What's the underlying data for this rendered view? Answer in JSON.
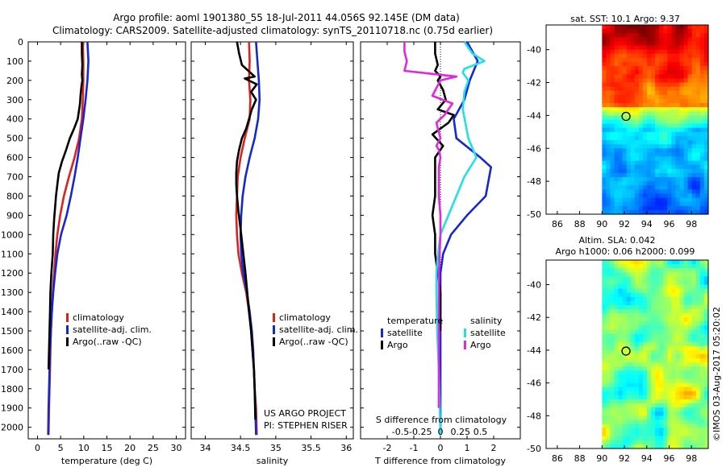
{
  "header": {
    "line1": "Argo profile: aoml 1901380_55 18-Jul-2011 44.056S 92.145E (DM data)",
    "line2": "Climatology: CARS2009. Satellite-adjusted climatology: synTS_20110718.nc (0.75d earlier)"
  },
  "colors": {
    "red": "#e0201a",
    "blue": "#1428d2",
    "black": "#000000",
    "cyan": "#20e0e8",
    "magenta": "#e028e0"
  },
  "chart_data": [
    {
      "id": "temperature",
      "type": "line",
      "xlabel": "temperature (deg C)",
      "xlim": [
        -2,
        32
      ],
      "xticks": [
        0,
        5,
        10,
        15,
        20,
        25,
        30
      ],
      "ylim": [
        0,
        2060
      ],
      "yticks": [
        0,
        100,
        200,
        300,
        400,
        500,
        600,
        700,
        800,
        900,
        1000,
        1100,
        1200,
        1300,
        1400,
        1500,
        1600,
        1700,
        1800,
        1900,
        2000
      ],
      "legend": [
        "climatology",
        "satellite-adj. clim.",
        "Argo(..raw -QC)"
      ],
      "series": [
        {
          "name": "climatology",
          "color": "red",
          "x": [
            9.8,
            9.9,
            9.9,
            9.8,
            9.6,
            9.0,
            8.0,
            6.8,
            5.7,
            4.9,
            4.3,
            3.9,
            3.6,
            3.3,
            3.1,
            2.9,
            2.8,
            2.7,
            2.6,
            2.5,
            2.4
          ],
          "y": [
            0,
            100,
            200,
            300,
            400,
            500,
            600,
            700,
            800,
            900,
            1000,
            1100,
            1200,
            1300,
            1400,
            1500,
            1600,
            1700,
            1800,
            1900,
            2040
          ]
        },
        {
          "name": "satellite-adj. clim.",
          "color": "blue",
          "x": [
            10.8,
            11.0,
            10.8,
            10.4,
            9.9,
            9.3,
            8.7,
            8.0,
            7.2,
            6.3,
            5.1,
            4.3,
            3.8,
            3.4,
            3.1,
            2.9,
            2.7,
            2.6,
            2.5,
            2.4,
            2.3
          ],
          "y": [
            0,
            100,
            200,
            300,
            400,
            500,
            600,
            700,
            800,
            900,
            1000,
            1100,
            1200,
            1300,
            1400,
            1500,
            1600,
            1700,
            1800,
            1900,
            2040
          ]
        },
        {
          "name": "Argo(..raw -QC)",
          "color": "black",
          "x": [
            9.6,
            9.6,
            9.7,
            9.6,
            9.7,
            9.5,
            9.3,
            9.2,
            8.7,
            7.9,
            7.0,
            6.2,
            5.3,
            4.6,
            4.3,
            4.0,
            3.8,
            3.6,
            3.4,
            3.3,
            3.0,
            2.8,
            2.7,
            2.6,
            2.5,
            2.4
          ],
          "y": [
            0,
            60,
            120,
            170,
            200,
            230,
            280,
            320,
            400,
            450,
            500,
            560,
            620,
            680,
            740,
            800,
            860,
            920,
            1000,
            1100,
            1200,
            1300,
            1400,
            1500,
            1600,
            1700
          ]
        }
      ]
    },
    {
      "id": "salinity",
      "type": "line",
      "xlabel": "salinity",
      "xlim": [
        33.8,
        36.1
      ],
      "xticks": [
        34,
        34.5,
        35,
        35.5,
        36
      ],
      "ylim": [
        0,
        2060
      ],
      "legend": [
        "climatology",
        "satellite-adj. clim.",
        "Argo(..raw -QC)"
      ],
      "annotation": [
        "US ARGO PROJECT",
        "PI: STEPHEN RISER"
      ],
      "series": [
        {
          "name": "climatology",
          "color": "red",
          "x": [
            34.62,
            34.63,
            34.62,
            34.64,
            34.63,
            34.56,
            34.5,
            34.46,
            34.45,
            34.44,
            34.45,
            34.47,
            34.52,
            34.58,
            34.62,
            34.65,
            34.67,
            34.69,
            34.7,
            34.72,
            34.73
          ],
          "y": [
            0,
            100,
            200,
            300,
            400,
            500,
            600,
            700,
            800,
            900,
            1000,
            1100,
            1200,
            1300,
            1400,
            1500,
            1600,
            1700,
            1800,
            1900,
            2040
          ]
        },
        {
          "name": "satellite-adj. clim.",
          "color": "blue",
          "x": [
            34.72,
            34.74,
            34.76,
            34.77,
            34.75,
            34.7,
            34.63,
            34.57,
            34.53,
            34.51,
            34.5,
            34.51,
            34.54,
            34.59,
            34.63,
            34.66,
            34.68,
            34.69,
            34.7,
            34.71,
            34.72
          ],
          "y": [
            0,
            100,
            200,
            300,
            400,
            500,
            600,
            700,
            800,
            900,
            1000,
            1100,
            1200,
            1300,
            1400,
            1500,
            1600,
            1700,
            1800,
            1900,
            2040
          ]
        },
        {
          "name": "Argo(..raw -QC)",
          "color": "black",
          "x": [
            34.45,
            34.48,
            34.52,
            34.7,
            34.56,
            34.73,
            34.65,
            34.72,
            34.66,
            34.62,
            34.58,
            34.52,
            34.48,
            34.45,
            34.44,
            34.44,
            34.45,
            34.47,
            34.51,
            34.57,
            34.62,
            34.65,
            34.67,
            34.69,
            34.7,
            34.71
          ],
          "y": [
            0,
            60,
            120,
            180,
            190,
            220,
            260,
            300,
            350,
            400,
            450,
            500,
            560,
            620,
            680,
            740,
            800,
            880,
            1000,
            1200,
            1400,
            1500,
            1600,
            1700,
            1800,
            1960
          ]
        }
      ]
    },
    {
      "id": "difference",
      "type": "line",
      "xlabel": "T difference from climatology",
      "xlabel2": "S difference from climatology",
      "xlim": [
        -3,
        3
      ],
      "xticks": [
        -2,
        -1,
        0,
        1,
        2
      ],
      "xticklabels": [
        "-2",
        "-1",
        "0",
        "1",
        "2"
      ],
      "sticks": [
        -0.5,
        -0.25,
        0,
        0.25,
        0.5
      ],
      "sticklabels": [
        "-0.5",
        "-0.25",
        "0",
        "0.25",
        "0.5"
      ],
      "ylim": [
        0,
        2060
      ],
      "legend_titles": [
        "temperature",
        "salinity"
      ],
      "legend": [
        "satellite",
        "Argo",
        "satellite",
        "Argo"
      ],
      "series": [
        {
          "name": "T satellite",
          "color": "blue",
          "x": [
            1.0,
            1.4,
            1.1,
            0.9,
            0.5,
            0.6,
            1.5,
            1.9,
            1.7,
            1.0,
            0.4,
            0.1,
            0.0,
            0.0,
            0.0,
            0.0,
            0.0,
            0.0,
            0.0,
            0.0
          ],
          "y": [
            0,
            100,
            200,
            300,
            400,
            500,
            600,
            650,
            800,
            900,
            1000,
            1100,
            1200,
            1300,
            1400,
            1500,
            1600,
            1700,
            1800,
            2040
          ]
        },
        {
          "name": "T Argo",
          "color": "black",
          "x": [
            -0.2,
            -0.2,
            -0.1,
            -0.2,
            0.0,
            -0.1,
            0.1,
            0.2,
            -0.1,
            0.5,
            0.3,
            -0.3,
            0.1,
            -0.2,
            -0.2,
            -0.2,
            -0.3,
            -0.2,
            -0.2,
            -0.1,
            0.0,
            0.0,
            0.0
          ],
          "y": [
            0,
            60,
            120,
            150,
            180,
            200,
            250,
            300,
            350,
            380,
            420,
            480,
            540,
            600,
            700,
            800,
            900,
            1000,
            1100,
            1200,
            1300,
            1400,
            1500
          ]
        },
        {
          "name": "S satellite",
          "color": "cyan",
          "x": [
            0.3,
            0.4,
            0.55,
            0.3,
            0.28,
            0.35,
            0.3,
            0.28,
            0.35,
            0.45,
            0.3,
            0.2,
            0.1,
            0.0,
            -0.03,
            -0.05,
            -0.05,
            -0.04,
            -0.02,
            0.0
          ],
          "y": [
            0,
            60,
            100,
            140,
            160,
            200,
            260,
            350,
            500,
            600,
            700,
            800,
            900,
            1000,
            1100,
            1200,
            1300,
            1500,
            1700,
            2040
          ]
        },
        {
          "name": "S Argo",
          "color": "magenta",
          "x": [
            -0.45,
            -0.45,
            -0.42,
            -0.45,
            0.2,
            0.0,
            -0.05,
            -0.1,
            0.15,
            0.05,
            -0.05,
            0.0,
            -0.05,
            -0.02,
            0.0,
            -0.02,
            -0.02,
            -0.02,
            0.0,
            0.0,
            -0.02,
            -0.02,
            -0.02,
            -0.02
          ],
          "y": [
            0,
            50,
            100,
            150,
            180,
            200,
            240,
            280,
            320,
            380,
            420,
            500,
            540,
            560,
            600,
            650,
            700,
            800,
            900,
            1000,
            1200,
            1400,
            1600,
            1900
          ]
        }
      ]
    },
    {
      "id": "sst_map",
      "type": "heatmap",
      "title": "sat. SST: 10.1  Argo: 9.37",
      "xticks": [
        86,
        88,
        90,
        92,
        94,
        96,
        98
      ],
      "xlim": [
        85,
        99.5
      ],
      "ylim": [
        -50,
        -38.5
      ],
      "yticks": [
        -50,
        -48,
        -46,
        -44,
        -42,
        -40
      ],
      "data_xmin": 90,
      "argo_position": [
        92.145,
        -44.056
      ]
    },
    {
      "id": "sla_map",
      "type": "heatmap",
      "title1": "Altim. SLA: 0.042",
      "title2": "Argo h1000: 0.06 h2000: 0.099",
      "xticks": [
        86,
        88,
        90,
        92,
        94,
        96,
        98
      ],
      "xlim": [
        85,
        99.5
      ],
      "ylim": [
        -50,
        -38.5
      ],
      "yticks": [
        -50,
        -48,
        -46,
        -44,
        -42,
        -40
      ],
      "data_xmin": 90,
      "argo_position": [
        92.145,
        -44.056
      ]
    }
  ],
  "footer_stamp": "©IMOS 03-Aug-2017 05:20:02"
}
